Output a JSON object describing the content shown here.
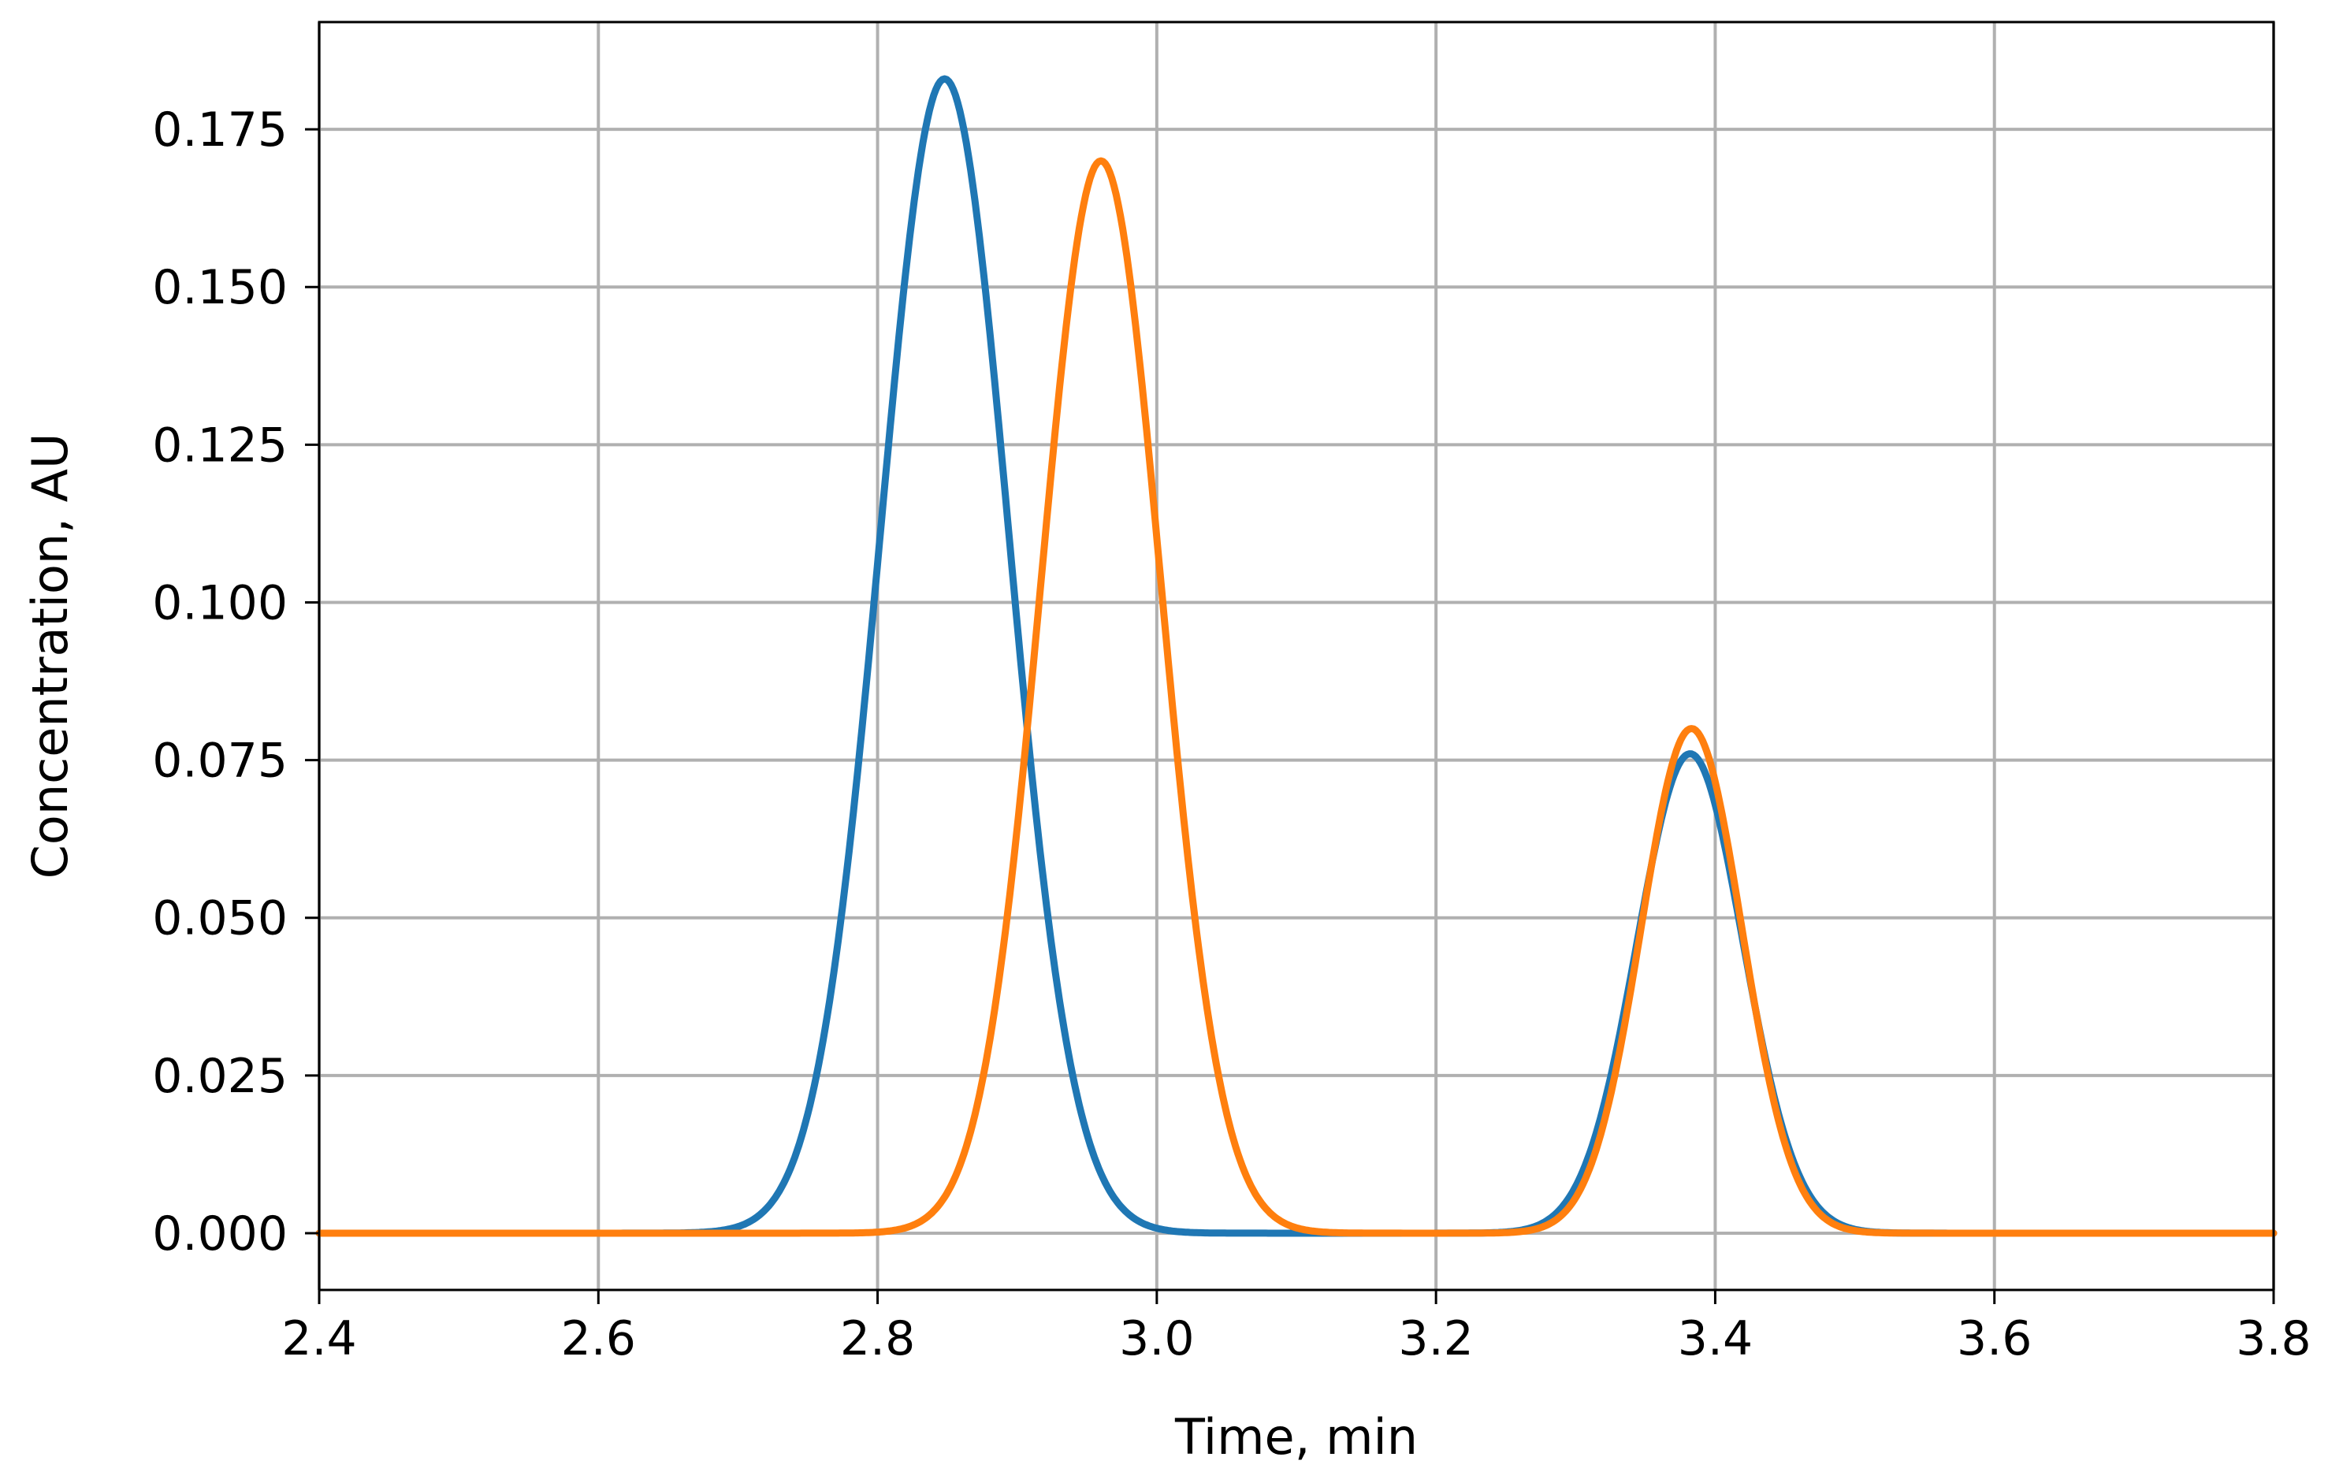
{
  "chart_data": {
    "type": "line",
    "title": "",
    "xlabel": "Time, min",
    "ylabel": "Concentration, AU",
    "xlim": [
      2.4,
      3.8
    ],
    "ylim": [
      -0.009,
      0.192
    ],
    "grid": true,
    "legend": "none",
    "x_ticks": [
      "2.4",
      "2.6",
      "2.8",
      "3.0",
      "3.2",
      "3.4",
      "3.6",
      "3.8"
    ],
    "y_ticks": [
      "0.000",
      "0.025",
      "0.050",
      "0.075",
      "0.100",
      "0.125",
      "0.150",
      "0.175"
    ],
    "series": [
      {
        "color": "#1f77b4",
        "peaks": [
          {
            "center": 2.848,
            "height": 0.183,
            "sigma": 0.046
          },
          {
            "center": 3.382,
            "height": 0.076,
            "sigma": 0.038
          }
        ],
        "x": [
          2.4,
          2.7,
          2.75,
          2.78,
          2.8,
          2.82,
          2.848,
          2.87,
          2.9,
          2.93,
          2.96,
          3.0,
          3.1,
          3.2,
          3.3,
          3.34,
          3.382,
          3.42,
          3.46,
          3.5,
          3.6,
          3.8
        ],
        "y": [
          0.0,
          0.0105,
          0.0378,
          0.0715,
          0.1,
          0.1497,
          0.183,
          0.1705,
          0.1005,
          0.0547,
          0.0195,
          0.0035,
          0.0,
          0.0,
          0.0125,
          0.0413,
          0.076,
          0.0462,
          0.0089,
          0.0007,
          0.0,
          0.0
        ]
      },
      {
        "color": "#ff7f0e",
        "peaks": [
          {
            "center": 2.96,
            "height": 0.17,
            "sigma": 0.043
          },
          {
            "center": 3.383,
            "height": 0.08,
            "sigma": 0.036
          }
        ],
        "x": [
          2.4,
          2.8,
          2.85,
          2.88,
          2.9,
          2.93,
          2.96,
          2.99,
          3.02,
          3.05,
          3.08,
          3.1,
          3.2,
          3.3,
          3.34,
          3.383,
          3.42,
          3.46,
          3.5,
          3.6,
          3.8
        ],
        "y": [
          0.0,
          0.0017,
          0.0327,
          0.0705,
          0.1,
          0.1326,
          0.17,
          0.1326,
          0.0644,
          0.0193,
          0.0035,
          0.0,
          0.0,
          0.0113,
          0.0424,
          0.08,
          0.0473,
          0.0082,
          0.0005,
          0.0,
          0.0
        ]
      }
    ]
  }
}
